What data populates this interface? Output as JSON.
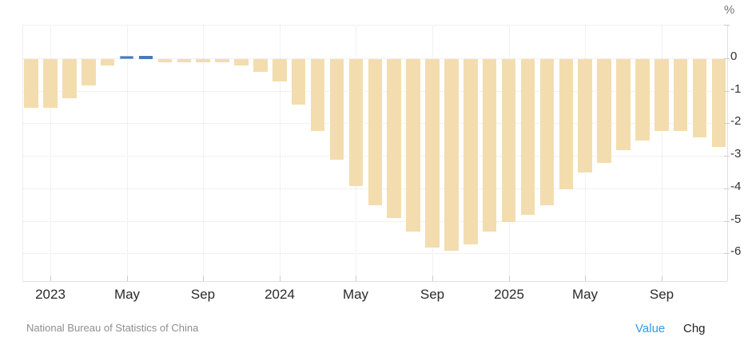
{
  "footer": {
    "source": "National Bureau of Statistics of China",
    "toggles": [
      {
        "label": "Value",
        "active": true
      },
      {
        "label": "Chg",
        "active": false
      }
    ]
  },
  "colors": {
    "bar": "#F3DDAF",
    "bar_positive": "#4A79B8",
    "bar_highlight_border": "#8FB0DA",
    "grid": "#E4E4E4",
    "axis": "#E0E0E0",
    "left_border": "#EFEFEF",
    "tick": "#CCCCCC",
    "x_label_text": "#2B2B2B",
    "y_label_text": "#333333",
    "unit_text": "#777777",
    "source_text": "#8E8E8E",
    "value_link": "#2D9BF0",
    "chg_text": "#222222",
    "background": "#FFFFFF"
  },
  "chart_data": {
    "type": "bar",
    "ylabel": "%",
    "categories": [
      "Dec 2022",
      "Jan 2023",
      "Feb 2023",
      "Mar 2023",
      "Apr 2023",
      "May 2023",
      "Jun 2023",
      "Jul 2023",
      "Aug 2023",
      "Sep 2023",
      "Oct 2023",
      "Nov 2023",
      "Dec 2023",
      "Jan 2024",
      "Feb 2024",
      "Mar 2024",
      "Apr 2024",
      "May 2024",
      "Jun 2024",
      "Jul 2024",
      "Aug 2024",
      "Sep 2024",
      "Oct 2024",
      "Nov 2024",
      "Dec 2024",
      "Jan 2025",
      "Feb 2025",
      "Mar 2025",
      "Apr 2025",
      "May 2025",
      "Jun 2025",
      "Jul 2025",
      "Aug 2025",
      "Sep 2025",
      "Oct 2025",
      "Nov 2025",
      "Dec 2025"
    ],
    "values": [
      -1.5,
      -1.5,
      -1.2,
      -0.8,
      -0.2,
      0.1,
      0.1,
      -0.1,
      -0.1,
      -0.1,
      -0.1,
      -0.2,
      -0.4,
      -0.7,
      -1.4,
      -2.2,
      -3.1,
      -3.9,
      -4.5,
      -4.9,
      -5.3,
      -5.8,
      -5.9,
      -5.7,
      -5.3,
      -5.0,
      -4.8,
      -4.5,
      -4.0,
      -3.5,
      -3.2,
      -2.8,
      -2.5,
      -2.2,
      -2.2,
      -2.4,
      -2.7
    ],
    "positive_values_colored_blue": true,
    "highlighted_index": 5,
    "x_tick_labels": [
      {
        "i": 1,
        "label": "2023"
      },
      {
        "i": 5,
        "label": "May"
      },
      {
        "i": 9,
        "label": "Sep"
      },
      {
        "i": 13,
        "label": "2024"
      },
      {
        "i": 17,
        "label": "May"
      },
      {
        "i": 21,
        "label": "Sep"
      },
      {
        "i": 25,
        "label": "2025"
      },
      {
        "i": 29,
        "label": "May"
      },
      {
        "i": 33,
        "label": "Sep"
      }
    ],
    "y_ticks": [
      0,
      -1,
      -2,
      -3,
      -4,
      -5,
      -6
    ],
    "ylim": [
      -6.85,
      1.05
    ],
    "grid": true,
    "legend_position": "none"
  }
}
